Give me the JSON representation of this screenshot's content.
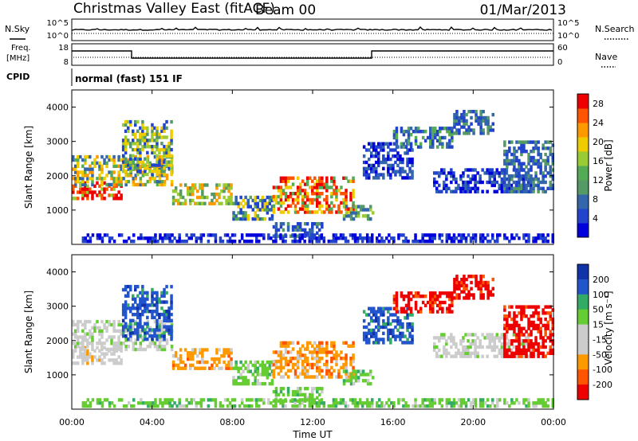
{
  "header": {
    "station": "Christmas Valley East (fitACF)",
    "beam": "Beam 00",
    "date": "01/Mar/2013"
  },
  "panels": {
    "noise": {
      "left_label": "N.Sky",
      "left_ticks": [
        "10^5",
        "10^0"
      ],
      "right_label": "N.Search",
      "right_ticks": [
        "10^5",
        "10^0"
      ]
    },
    "freq": {
      "left_label_1": "Freq.",
      "left_label_2": "[MHz]",
      "left_ticks": [
        "18",
        "8"
      ],
      "right_label": "Nave",
      "right_ticks": [
        "60",
        "0"
      ]
    },
    "cpid": {
      "label": "CPID",
      "text": "normal (fast) 151 IF"
    }
  },
  "colors": {
    "power": [
      "#0000dd",
      "#2244cc",
      "#3366aa",
      "#559966",
      "#55aa55",
      "#99cc33",
      "#eecc00",
      "#ff9900",
      "#ff5500",
      "#ee0000"
    ],
    "velocity": [
      "#ee0000",
      "#ff5500",
      "#ff9900",
      "#cccccc",
      "#cccccc",
      "#66cc33",
      "#33aa66",
      "#2255cc",
      "#1133aa"
    ]
  },
  "chart_data": [
    {
      "type": "heatmap",
      "name": "power",
      "ylabel": "Slant Range [km]",
      "yticks": [
        "1000",
        "2000",
        "3000",
        "4000"
      ],
      "ylim": [
        0,
        4500
      ],
      "colorbar": {
        "label": "Power [dB]",
        "ticks": [
          "4",
          "8",
          "12",
          "16",
          "20",
          "24",
          "28"
        ],
        "range": [
          0,
          30
        ]
      }
    },
    {
      "type": "heatmap",
      "name": "velocity",
      "ylabel": "Slant Range [km]",
      "yticks": [
        "1000",
        "2000",
        "3000",
        "4000"
      ],
      "ylim": [
        0,
        4500
      ],
      "xlabel": "Time UT",
      "xticks": [
        "00:00",
        "04:00",
        "08:00",
        "12:00",
        "16:00",
        "20:00",
        "00:00"
      ],
      "xlim": [
        "00:00",
        "24:00"
      ],
      "colorbar": {
        "label": "Velocity [m s⁻¹]",
        "ticks": [
          "200",
          "100",
          "50",
          "15",
          "-15",
          "-50",
          "-100",
          "-200"
        ],
        "range": [
          -250,
          250
        ]
      }
    }
  ]
}
